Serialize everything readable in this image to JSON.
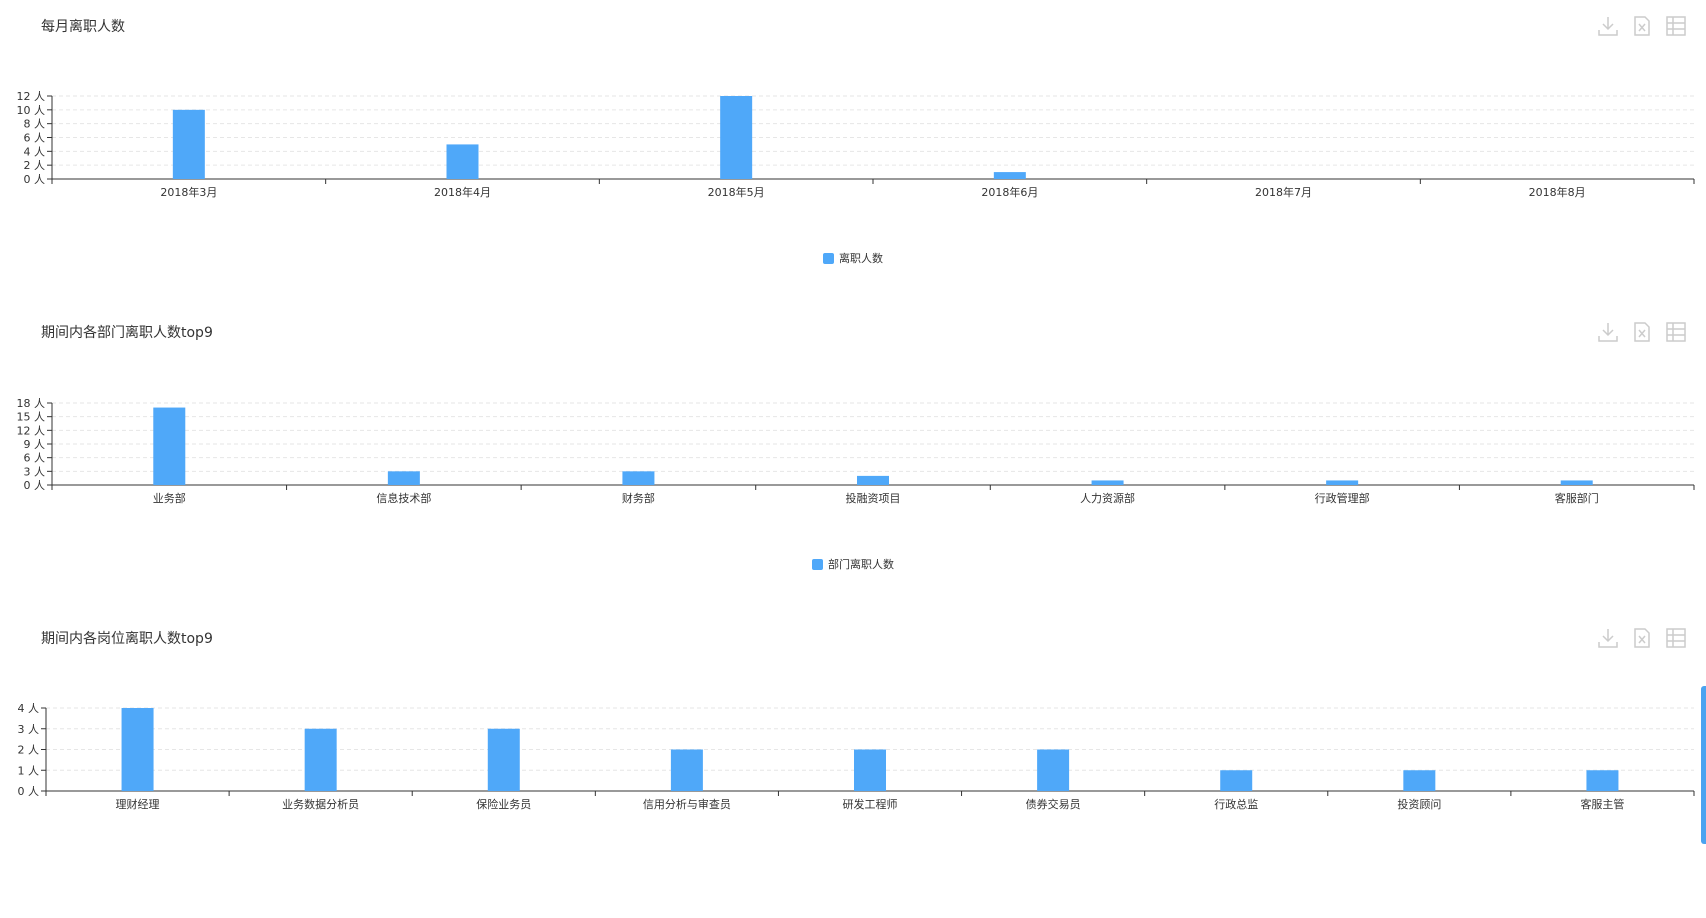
{
  "colors": {
    "bar": "#4fa8f9",
    "axis": "#333333",
    "grid": "#e6e6e6",
    "icon": "#cccccc"
  },
  "charts": [
    {
      "title": "每月离职人数",
      "tools": {
        "download": "download-icon",
        "excel": "excel-export-icon",
        "table": "data-table-icon"
      },
      "chart_data": {
        "type": "bar",
        "categories": [
          "2018年3月",
          "2018年4月",
          "2018年5月",
          "2018年6月",
          "2018年7月",
          "2018年8月"
        ],
        "series": [
          {
            "name": "离职人数",
            "values": [
              10,
              5,
              12,
              1,
              0,
              0
            ]
          }
        ],
        "yticks": [
          "0 人",
          "2 人",
          "4 人",
          "6 人",
          "8 人",
          "10 人",
          "12 人"
        ],
        "ylim": [
          0,
          12
        ],
        "grid": true,
        "legend": "bottom-center"
      }
    },
    {
      "title": "期间内各部门离职人数top9",
      "tools": {
        "download": "download-icon",
        "excel": "excel-export-icon",
        "table": "data-table-icon"
      },
      "chart_data": {
        "type": "bar",
        "categories": [
          "业务部",
          "信息技术部",
          "财务部",
          "投融资项目",
          "人力资源部",
          "行政管理部",
          "客服部门"
        ],
        "series": [
          {
            "name": "部门离职人数",
            "values": [
              17,
              3,
              3,
              2,
              1,
              1,
              1
            ]
          }
        ],
        "yticks": [
          "0 人",
          "3 人",
          "6 人",
          "9 人",
          "12 人",
          "15 人",
          "18 人"
        ],
        "ylim": [
          0,
          18
        ],
        "grid": true,
        "legend": "bottom-center"
      }
    },
    {
      "title": "期间内各岗位离职人数top9",
      "tools": {
        "download": "download-icon",
        "excel": "excel-export-icon",
        "table": "data-table-icon"
      },
      "chart_data": {
        "type": "bar",
        "categories": [
          "理财经理",
          "业务数据分析员",
          "保险业务员",
          "信用分析与审查员",
          "研发工程师",
          "债券交易员",
          "行政总监",
          "投资顾问",
          "客服主管"
        ],
        "series": [
          {
            "values": [
              4,
              3,
              3,
              2,
              2,
              2,
              1,
              1,
              1
            ]
          }
        ],
        "yticks": [
          "0 人",
          "1 人",
          "2 人",
          "3 人",
          "4 人"
        ],
        "ylim": [
          0,
          4
        ],
        "grid": true
      }
    }
  ]
}
